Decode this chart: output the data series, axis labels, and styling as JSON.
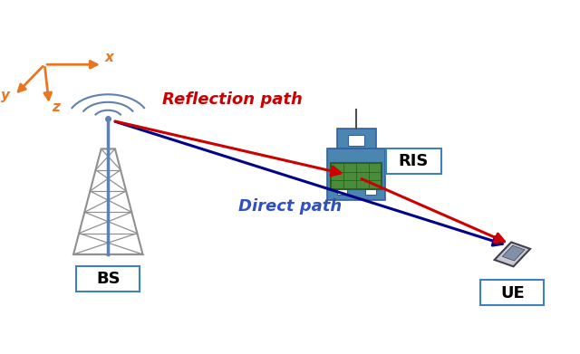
{
  "bg_color": "#ffffff",
  "bs_label": "BS",
  "ris_label": "RIS",
  "ue_label": "UE",
  "reflection_label": "Reflection path",
  "direct_label": "Direct path",
  "reflection_color": "#cc0000",
  "direct_color": "#00008b",
  "arrow_color_orange": "#e87722",
  "bld_color": "#4a86b0",
  "bld_edge_color": "#3060a0",
  "ris_panel_color": "#4a8c3c",
  "ris_panel_edge": "#2a6020",
  "tower_color": "#909090",
  "tower_mast_color": "#6080b0",
  "label_box_edge": "#4080c0"
}
